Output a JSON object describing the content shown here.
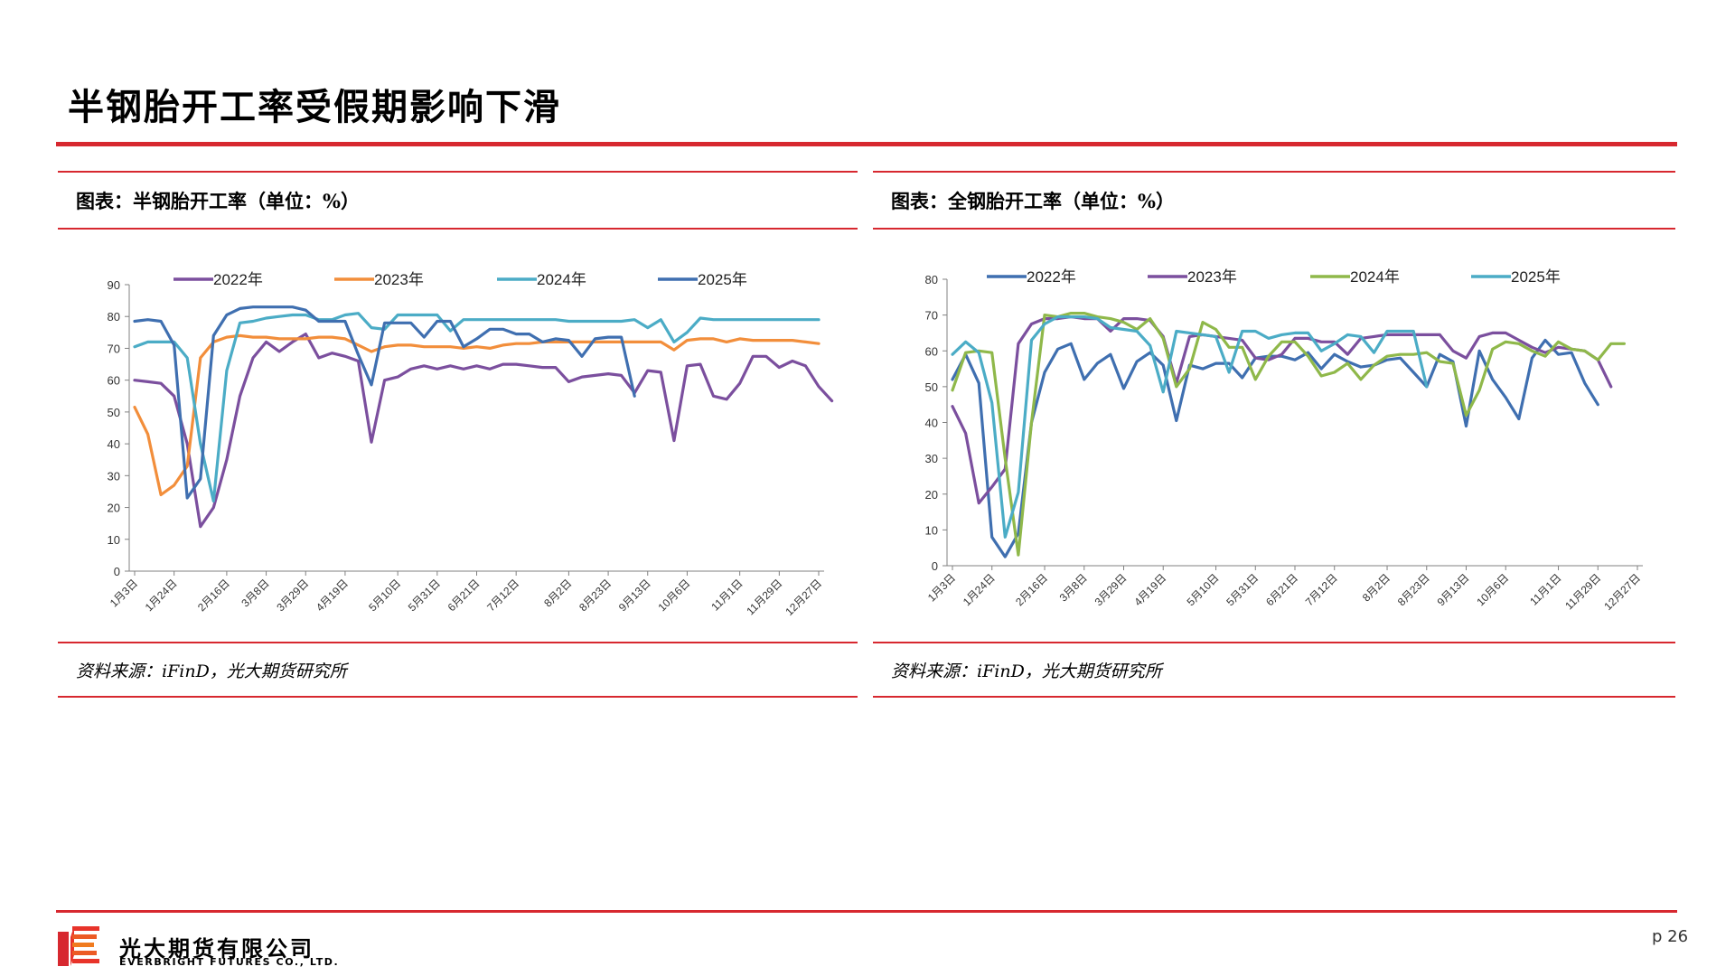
{
  "page": {
    "title": "半钢胎开工率受假期影响下滑",
    "page_number": "p 26",
    "logo": {
      "cn": "光大期货有限公司",
      "en": "EVERBRIGHT FUTURES CO., LTD.",
      "icon": "everbright-logo-icon"
    },
    "accent_color": "#d7282f"
  },
  "panels": [
    {
      "title": "图表：半钢胎开工率（单位：%）",
      "source": "资料来源：iFinD，光大期货研究所"
    },
    {
      "title": "图表：全钢胎开工率（单位：%）",
      "source": "资料来源：iFinD，光大期货研究所"
    }
  ],
  "chart_data": [
    {
      "type": "line",
      "title": "",
      "xlabel": "",
      "ylabel": "",
      "x_tick_labels": [
        "1月3日",
        "1月24日",
        "2月16日",
        "3月8日",
        "3月29日",
        "4月19日",
        "5月10日",
        "5月31日",
        "6月21日",
        "7月12日",
        "8月2日",
        "8月23日",
        "9月13日",
        "10月6日",
        "11月1日",
        "11月29日",
        "12月27日"
      ],
      "ylim": [
        0,
        90
      ],
      "y_ticks": [
        0,
        10,
        20,
        30,
        40,
        50,
        60,
        70,
        80,
        90
      ],
      "legend_position": "top",
      "grid": false,
      "series": [
        {
          "name": "2022年",
          "color": "#7b4f9e",
          "values": [
            60,
            59.5,
            59,
            55,
            40,
            14,
            20,
            35,
            55,
            67,
            72,
            69,
            72,
            74.5,
            67,
            68.5,
            67.5,
            66,
            40.5,
            60,
            61,
            63.5,
            64.5,
            63.5,
            64.5,
            63.5,
            64.5,
            63.5,
            65,
            65,
            64.5,
            64,
            64,
            59.5,
            61,
            61.5,
            62,
            61.5,
            56,
            63,
            62.5,
            41,
            64.5,
            65,
            55,
            54,
            59,
            67.5,
            67.5,
            64,
            66,
            64.5,
            58,
            53.5
          ]
        },
        {
          "name": "2023年",
          "color": "#f28e3b",
          "values": [
            51.5,
            43,
            24,
            27,
            33,
            67,
            72,
            73.5,
            74,
            73.5,
            73.5,
            73,
            73,
            73,
            73.5,
            73.5,
            73,
            71,
            69,
            70.5,
            71,
            71,
            70.5,
            70.5,
            70.5,
            70,
            70.5,
            70,
            71,
            71.5,
            71.5,
            72,
            72,
            72,
            72,
            72,
            72,
            72,
            72,
            72,
            72,
            69.5,
            72.5,
            73,
            73,
            72,
            73,
            72.5,
            72.5,
            72.5,
            72.5,
            72,
            71.5
          ]
        },
        {
          "name": "2024年",
          "color": "#4bacc6",
          "values": [
            70.5,
            72,
            72,
            72,
            67,
            40,
            22,
            63,
            78,
            78.5,
            79.5,
            80,
            80.5,
            80.5,
            79,
            79,
            80.5,
            81,
            76.5,
            76,
            80.5,
            80.5,
            80.5,
            80.5,
            75.5,
            79,
            79,
            79,
            79,
            79,
            79,
            79,
            79,
            78.5,
            78.5,
            78.5,
            78.5,
            78.5,
            79,
            76.5,
            79,
            72,
            75,
            79.5,
            79,
            79,
            79,
            79,
            79,
            79,
            79,
            79,
            79
          ]
        },
        {
          "name": "2025年",
          "color": "#3f6fb0",
          "values": [
            78.5,
            79,
            78.5,
            71,
            23,
            29,
            74,
            80.5,
            82.5,
            83,
            83,
            83,
            83,
            82,
            78.5,
            78.5,
            78.5,
            68,
            58.5,
            78,
            78,
            78,
            73.5,
            78.5,
            78.5,
            70.5,
            73,
            76,
            76,
            74.5,
            74.5,
            72,
            73,
            72.5,
            67.5,
            73,
            73.5,
            73.5,
            55
          ]
        }
      ]
    },
    {
      "type": "line",
      "title": "",
      "xlabel": "",
      "ylabel": "",
      "x_tick_labels": [
        "1月3日",
        "1月24日",
        "2月16日",
        "3月8日",
        "3月29日",
        "4月19日",
        "5月10日",
        "5月31日",
        "6月21日",
        "7月12日",
        "8月2日",
        "8月23日",
        "9月13日",
        "10月6日",
        "11月1日",
        "11月29日",
        "12月27日"
      ],
      "ylim": [
        0,
        80
      ],
      "y_ticks": [
        0,
        10,
        20,
        30,
        40,
        50,
        60,
        70,
        80
      ],
      "legend_position": "top",
      "grid": false,
      "series": [
        {
          "name": "2022年",
          "color": "#3f6fb0",
          "values": [
            52,
            59,
            51,
            8,
            2.5,
            9,
            40,
            54,
            60.5,
            62,
            52,
            56.5,
            59,
            49.5,
            57,
            59.5,
            56,
            40.5,
            56,
            55,
            56.5,
            56.5,
            52.5,
            58,
            58.5,
            58.5,
            57.5,
            59.5,
            55,
            59,
            57,
            55.5,
            56,
            57.5,
            58,
            54,
            50,
            59,
            57,
            39,
            60,
            52,
            47,
            41,
            58,
            63,
            59,
            59.5,
            51,
            45
          ]
        },
        {
          "name": "2023年",
          "color": "#7b4f9e",
          "values": [
            44.5,
            37,
            17.5,
            22,
            27,
            62,
            67.5,
            69,
            69,
            69.5,
            69,
            69,
            65.5,
            69,
            69,
            68.5,
            64,
            51,
            64,
            64.5,
            64,
            63.5,
            63,
            58,
            57.5,
            59,
            63.5,
            63.5,
            62.5,
            62.5,
            59,
            63.5,
            64,
            64.5,
            64.5,
            64.5,
            64.5,
            64.5,
            60,
            58,
            64,
            65,
            65,
            63,
            61,
            59.5,
            61,
            60.5,
            60,
            57.5,
            50
          ]
        },
        {
          "name": "2024年",
          "color": "#8fb84a",
          "values": [
            49,
            59.5,
            60,
            59.5,
            30,
            3,
            40,
            70,
            69.5,
            70.5,
            70.5,
            69.5,
            69,
            68,
            66,
            69,
            63.5,
            50,
            55,
            68,
            66,
            61,
            61,
            52,
            58.5,
            62.5,
            62.5,
            58.5,
            53,
            54,
            56.5,
            52,
            56,
            58.5,
            59,
            59,
            59.5,
            57,
            56.5,
            42,
            49,
            60.5,
            62.5,
            62,
            60,
            58.5,
            62.5,
            60.5,
            60,
            57.5,
            62,
            62
          ]
        },
        {
          "name": "2025年",
          "color": "#4bacc6",
          "values": [
            59,
            62.5,
            59.5,
            45.5,
            8,
            20.5,
            63,
            67.5,
            69.5,
            69.5,
            69.5,
            69,
            66.5,
            66,
            65.5,
            61.5,
            48.5,
            65.5,
            65,
            64.5,
            64,
            54,
            65.5,
            65.5,
            63.5,
            64.5,
            65,
            65,
            60,
            62,
            64.5,
            64,
            59.5,
            65.5,
            65.5,
            65.5,
            50
          ]
        }
      ]
    }
  ]
}
